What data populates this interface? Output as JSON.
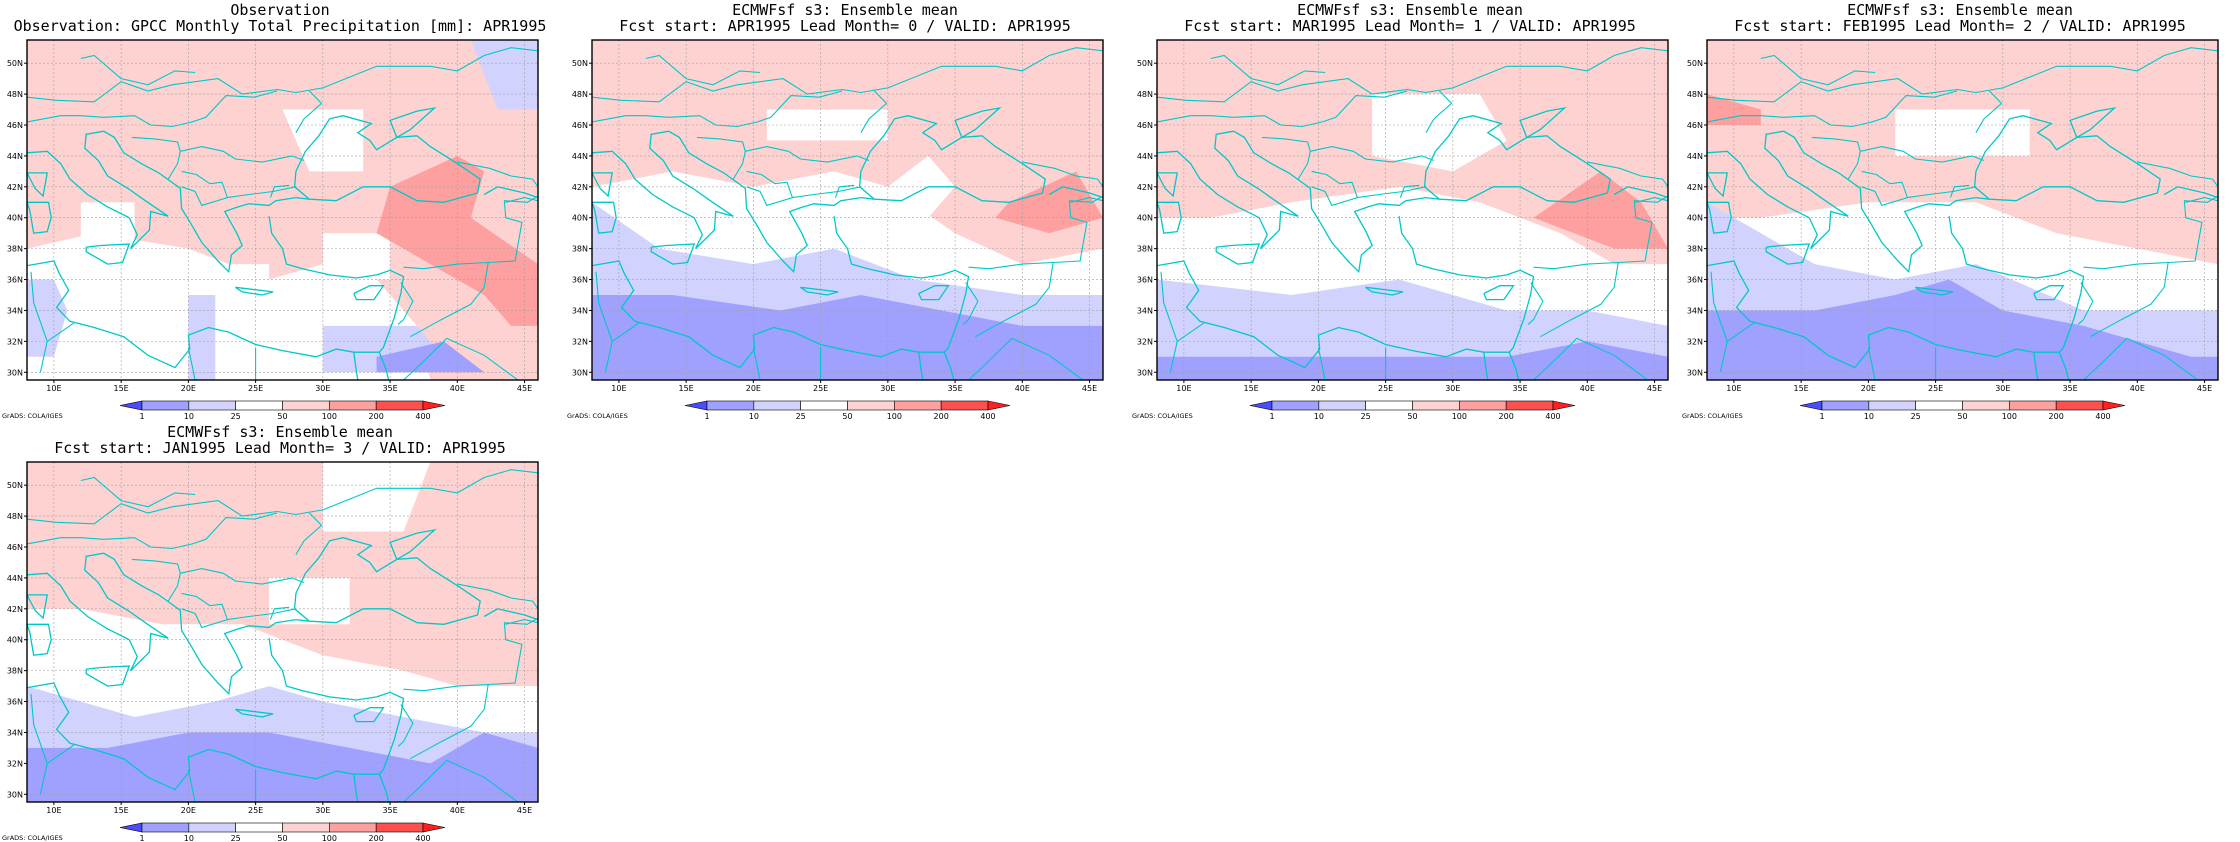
{
  "panels": [
    {
      "title1": "Observation",
      "title2": "Observation: GPCC Monthly Total Precipitation [mm]: APR1995",
      "variant": 0
    },
    {
      "title1": "ECMWFsf s3: Ensemble mean",
      "title2": "Fcst start: APR1995   Lead Month= 0 / VALID: APR1995",
      "variant": 1
    },
    {
      "title1": "ECMWFsf s3: Ensemble mean",
      "title2": "Fcst start: MAR1995   Lead Month= 1 / VALID: APR1995",
      "variant": 2
    },
    {
      "title1": "ECMWFsf s3: Ensemble mean",
      "title2": "Fcst start: FEB1995   Lead Month= 2 / VALID: APR1995",
      "variant": 3
    },
    {
      "title1": "ECMWFsf s3: Ensemble mean",
      "title2": "Fcst start: JAN1995   Lead Month= 3 / VALID: APR1995",
      "variant": 4
    }
  ],
  "map": {
    "lon_range": [
      8,
      46
    ],
    "lat_range": [
      29.5,
      51.5
    ],
    "lon_ticks": [
      10,
      15,
      20,
      25,
      30,
      35,
      40,
      45
    ],
    "lon_tick_labels": [
      "10E",
      "15E",
      "20E",
      "25E",
      "30E",
      "35E",
      "40E",
      "45E"
    ],
    "lat_ticks": [
      30,
      32,
      34,
      36,
      38,
      40,
      42,
      44,
      46,
      48,
      50
    ],
    "lat_tick_labels": [
      "30N",
      "32N",
      "34N",
      "36N",
      "38N",
      "40N",
      "42N",
      "44N",
      "46N",
      "48N",
      "50N"
    ],
    "grid": true,
    "coast_color": "#00c8c8"
  },
  "colorbar": {
    "labels": [
      "1",
      "10",
      "25",
      "50",
      "100",
      "200",
      "400"
    ],
    "colors": [
      "#4b4bff",
      "#a0a0ff",
      "#d2d2ff",
      "#ffffff",
      "#ffd2d2",
      "#ffa0a0",
      "#ff5050",
      "#ff2020"
    ]
  },
  "credit": "GrADS: COLA/IGES"
}
